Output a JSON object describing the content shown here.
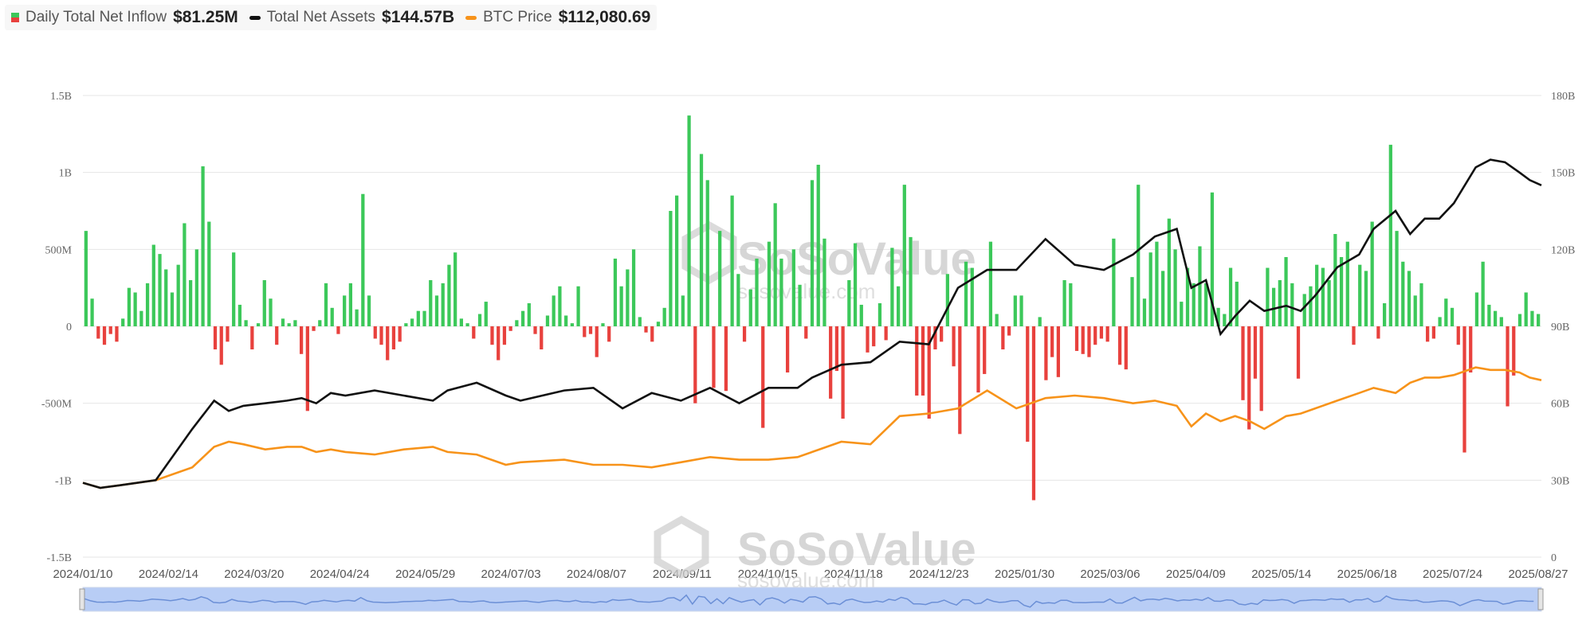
{
  "legend": {
    "inflow_label": "Daily Total Net Inflow",
    "inflow_value": "$81.25M",
    "assets_label": "Total Net Assets",
    "assets_value": "$144.57B",
    "price_label": "BTC Price",
    "price_value": "$112,080.69"
  },
  "watermark": {
    "brand": "SoSoValue",
    "url": "sosovalue.com"
  },
  "colors": {
    "inflow_pos": "#3cc85a",
    "inflow_neg": "#e8413d",
    "assets": "#111111",
    "price": "#f7931a",
    "navigator": "#b8cdf5"
  },
  "chart_data": {
    "type": "bar",
    "left_axis": {
      "ticks": [
        "1.5B",
        "1B",
        "500M",
        "0",
        "-500M",
        "-1B",
        "-1.5B"
      ],
      "range": [
        -1.5,
        1.5
      ],
      "unit": "B"
    },
    "right_axis": {
      "ticks": [
        "180B",
        "150B",
        "120B",
        "90B",
        "60B",
        "30B",
        "0"
      ],
      "range": [
        0,
        180
      ],
      "unit": "B"
    },
    "x_ticks": [
      "2024/01/10",
      "2024/02/14",
      "2024/03/20",
      "2024/04/24",
      "2024/05/29",
      "2024/07/03",
      "2024/08/07",
      "2024/09/11",
      "2024/10/15",
      "2024/11/18",
      "2024/12/23",
      "2025/01/30",
      "2025/03/06",
      "2025/04/09",
      "2025/05/14",
      "2025/06/18",
      "2025/07/24",
      "2025/08/27"
    ],
    "grid": true,
    "legend_position": "top-left",
    "series": [
      {
        "name": "Daily Total Net Inflow",
        "axis": "left",
        "bar_values": [
          0.62,
          0.18,
          -0.08,
          -0.12,
          -0.05,
          -0.1,
          0.05,
          0.25,
          0.22,
          0.1,
          0.28,
          0.53,
          0.47,
          0.37,
          0.22,
          0.4,
          0.67,
          0.3,
          0.5,
          1.04,
          0.68,
          -0.15,
          -0.25,
          -0.1,
          0.48,
          0.14,
          0.04,
          -0.15,
          0.02,
          0.3,
          0.18,
          -0.12,
          0.05,
          0.02,
          0.04,
          -0.18,
          -0.55,
          -0.03,
          0.04,
          0.28,
          0.12,
          -0.05,
          0.2,
          0.28,
          0.11,
          0.86,
          0.2,
          -0.08,
          -0.12,
          -0.22,
          -0.15,
          -0.1,
          0.02,
          0.05,
          0.1,
          0.1,
          0.3,
          0.2,
          0.28,
          0.4,
          0.48,
          0.05,
          0.02,
          -0.08,
          0.08,
          0.16,
          -0.12,
          -0.22,
          -0.12,
          -0.03,
          0.04,
          0.1,
          0.15,
          -0.05,
          -0.15,
          0.07,
          0.2,
          0.26,
          0.07,
          0.02,
          0.26,
          -0.07,
          -0.05,
          -0.2,
          0.02,
          -0.1,
          0.44,
          0.26,
          0.37,
          0.5,
          0.06,
          -0.04,
          -0.1,
          0.03,
          0.12,
          0.75,
          0.85,
          0.2,
          1.37,
          -0.5,
          1.12,
          0.95,
          -0.4,
          0.62,
          -0.42,
          0.85,
          0.34,
          -0.1,
          0.24,
          0.44,
          -0.66,
          0.55,
          0.8,
          0.44,
          -0.3,
          0.5,
          0.27,
          -0.08,
          0.95,
          1.05,
          0.57,
          -0.47,
          -0.29,
          -0.6,
          0.3,
          0.54,
          0.14,
          -0.17,
          -0.13,
          0.15,
          -0.09,
          0.51,
          0.26,
          0.92,
          0.58,
          -0.45,
          -0.45,
          -0.6,
          -0.15,
          -0.1,
          0.34,
          -0.26,
          -0.7,
          0.42,
          0.38,
          -0.43,
          -0.31,
          0.55,
          0.08,
          -0.15,
          -0.06,
          0.2,
          0.2,
          -0.75,
          -1.13,
          0.06,
          -0.35,
          -0.2,
          -0.33,
          0.3,
          0.28,
          -0.16,
          -0.18,
          -0.2,
          -0.12,
          -0.08,
          -0.1,
          0.57,
          -0.25,
          -0.28,
          0.32,
          0.92,
          0.18,
          0.48,
          0.55,
          0.36,
          0.7,
          0.5,
          0.16,
          0.38,
          0.28,
          0.52,
          0.28,
          0.87,
          0.12,
          0.08,
          0.38,
          0.29,
          -0.48,
          -0.67,
          -0.34,
          -0.55,
          0.38,
          0.25,
          0.3,
          0.45,
          0.28,
          -0.34,
          0.21,
          0.26,
          0.4,
          0.38,
          0.3,
          0.6,
          0.45,
          0.55,
          -0.12,
          0.4,
          0.36,
          0.68,
          -0.08,
          0.15,
          1.18,
          0.62,
          0.42,
          0.36,
          0.2,
          0.28,
          -0.1,
          -0.08,
          0.06,
          0.18,
          0.12,
          -0.12,
          -0.82,
          -0.3,
          0.22,
          0.42,
          0.14,
          0.1,
          0.06,
          -0.52,
          -0.32,
          0.08,
          0.22,
          0.1,
          0.08
        ]
      },
      {
        "name": "Total Net Assets",
        "axis": "right",
        "x": [
          0,
          0.012,
          0.025,
          0.05,
          0.075,
          0.09,
          0.1,
          0.11,
          0.125,
          0.14,
          0.15,
          0.16,
          0.17,
          0.18,
          0.2,
          0.22,
          0.24,
          0.25,
          0.27,
          0.29,
          0.3,
          0.33,
          0.35,
          0.37,
          0.39,
          0.41,
          0.43,
          0.45,
          0.47,
          0.49,
          0.5,
          0.52,
          0.54,
          0.56,
          0.58,
          0.6,
          0.62,
          0.64,
          0.66,
          0.68,
          0.7,
          0.72,
          0.735,
          0.75,
          0.76,
          0.77,
          0.78,
          0.79,
          0.8,
          0.81,
          0.825,
          0.835,
          0.845,
          0.86,
          0.875,
          0.885,
          0.9,
          0.91,
          0.92,
          0.93,
          0.94,
          0.955,
          0.965,
          0.975,
          0.985,
          0.992,
          1
        ],
        "values": [
          29,
          27,
          28,
          30,
          50,
          61,
          57,
          59,
          60,
          61,
          62,
          60,
          64,
          63,
          65,
          63,
          61,
          65,
          68,
          63,
          61,
          65,
          66,
          58,
          64,
          61,
          66,
          60,
          66,
          66,
          70,
          75,
          76,
          84,
          83,
          105,
          112,
          112,
          124,
          114,
          112,
          118,
          125,
          128,
          105,
          108,
          87,
          94,
          100,
          96,
          98,
          96,
          102,
          113,
          118,
          128,
          135,
          126,
          132,
          132,
          138,
          152,
          155,
          154,
          150,
          147,
          145
        ]
      },
      {
        "name": "BTC Price",
        "axis": "right",
        "x": [
          0,
          0.012,
          0.025,
          0.05,
          0.075,
          0.09,
          0.1,
          0.11,
          0.125,
          0.14,
          0.15,
          0.16,
          0.17,
          0.18,
          0.2,
          0.22,
          0.24,
          0.25,
          0.27,
          0.29,
          0.3,
          0.33,
          0.35,
          0.37,
          0.39,
          0.41,
          0.43,
          0.45,
          0.47,
          0.49,
          0.5,
          0.52,
          0.54,
          0.56,
          0.58,
          0.6,
          0.62,
          0.64,
          0.66,
          0.68,
          0.7,
          0.72,
          0.735,
          0.75,
          0.76,
          0.77,
          0.78,
          0.79,
          0.8,
          0.81,
          0.825,
          0.835,
          0.845,
          0.86,
          0.875,
          0.885,
          0.9,
          0.91,
          0.92,
          0.93,
          0.94,
          0.955,
          0.965,
          0.975,
          0.985,
          0.992,
          1
        ],
        "values": [
          29,
          27,
          28,
          30,
          35,
          43,
          45,
          44,
          42,
          43,
          43,
          41,
          42,
          41,
          40,
          42,
          43,
          41,
          40,
          36,
          37,
          38,
          36,
          36,
          35,
          37,
          39,
          38,
          38,
          39,
          41,
          45,
          44,
          55,
          56,
          58,
          65,
          58,
          62,
          63,
          62,
          60,
          61,
          59,
          51,
          56,
          53,
          55,
          53,
          50,
          55,
          56,
          58,
          61,
          64,
          66,
          64,
          68,
          70,
          70,
          71,
          74,
          73,
          73,
          72,
          70,
          69
        ]
      }
    ]
  }
}
